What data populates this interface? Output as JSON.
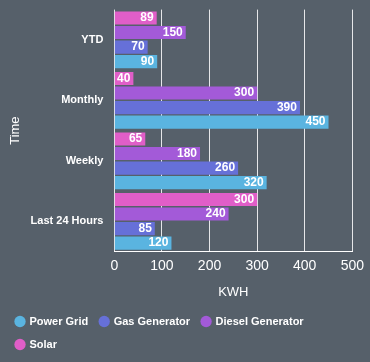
{
  "chart_data": {
    "type": "bar",
    "orientation": "horizontal",
    "categories": [
      "YTD",
      "Monthly",
      "Weekly",
      "Last 24 Hours"
    ],
    "series": [
      {
        "name": "Power Grid",
        "color": "#5ab4e0",
        "values": [
          90,
          450,
          320,
          120
        ]
      },
      {
        "name": "Gas Generator",
        "color": "#6670d8",
        "values": [
          70,
          390,
          260,
          85
        ]
      },
      {
        "name": "Diesel Generator",
        "color": "#a35ad8",
        "values": [
          150,
          300,
          180,
          240
        ]
      },
      {
        "name": "Solar",
        "color": "#e05ec8",
        "values": [
          89,
          40,
          65,
          300
        ]
      }
    ],
    "x_label": "KWH",
    "y_label": "Time",
    "xlim": [
      0,
      500
    ],
    "xticks": [
      0,
      100,
      200,
      300,
      400,
      500
    ],
    "grid": true,
    "legend": "bottom",
    "data_labels": true
  }
}
